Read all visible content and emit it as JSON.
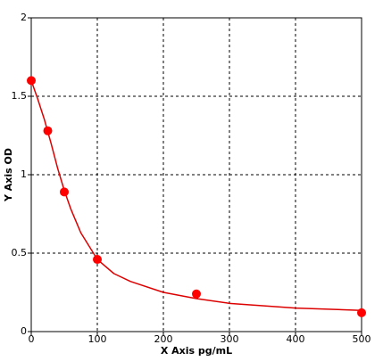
{
  "chart_data": {
    "type": "scatter",
    "x_label": "X Axis pg/mL",
    "y_label": "Y Axis OD",
    "xlim": [
      0,
      500
    ],
    "xticks": [
      0,
      100,
      200,
      300,
      400,
      500
    ],
    "ylim": [
      0,
      2
    ],
    "yticks": [
      0,
      0.5,
      1,
      1.5,
      2
    ],
    "grid": true,
    "series": [
      {
        "color": "#ff0000",
        "mode": "markers",
        "x": [
          0,
          25,
          50,
          100,
          250,
          500
        ],
        "values": [
          1.6,
          1.28,
          0.89,
          0.46,
          0.24,
          0.12
        ]
      },
      {
        "color": "#dd0000",
        "mode": "line",
        "x": [
          0,
          10,
          20,
          30,
          40,
          50,
          60,
          75,
          100,
          125,
          150,
          200,
          250,
          300,
          400,
          500
        ],
        "values": [
          1.6,
          1.48,
          1.35,
          1.2,
          1.04,
          0.9,
          0.78,
          0.63,
          0.46,
          0.37,
          0.32,
          0.25,
          0.21,
          0.18,
          0.15,
          0.135
        ]
      }
    ]
  }
}
